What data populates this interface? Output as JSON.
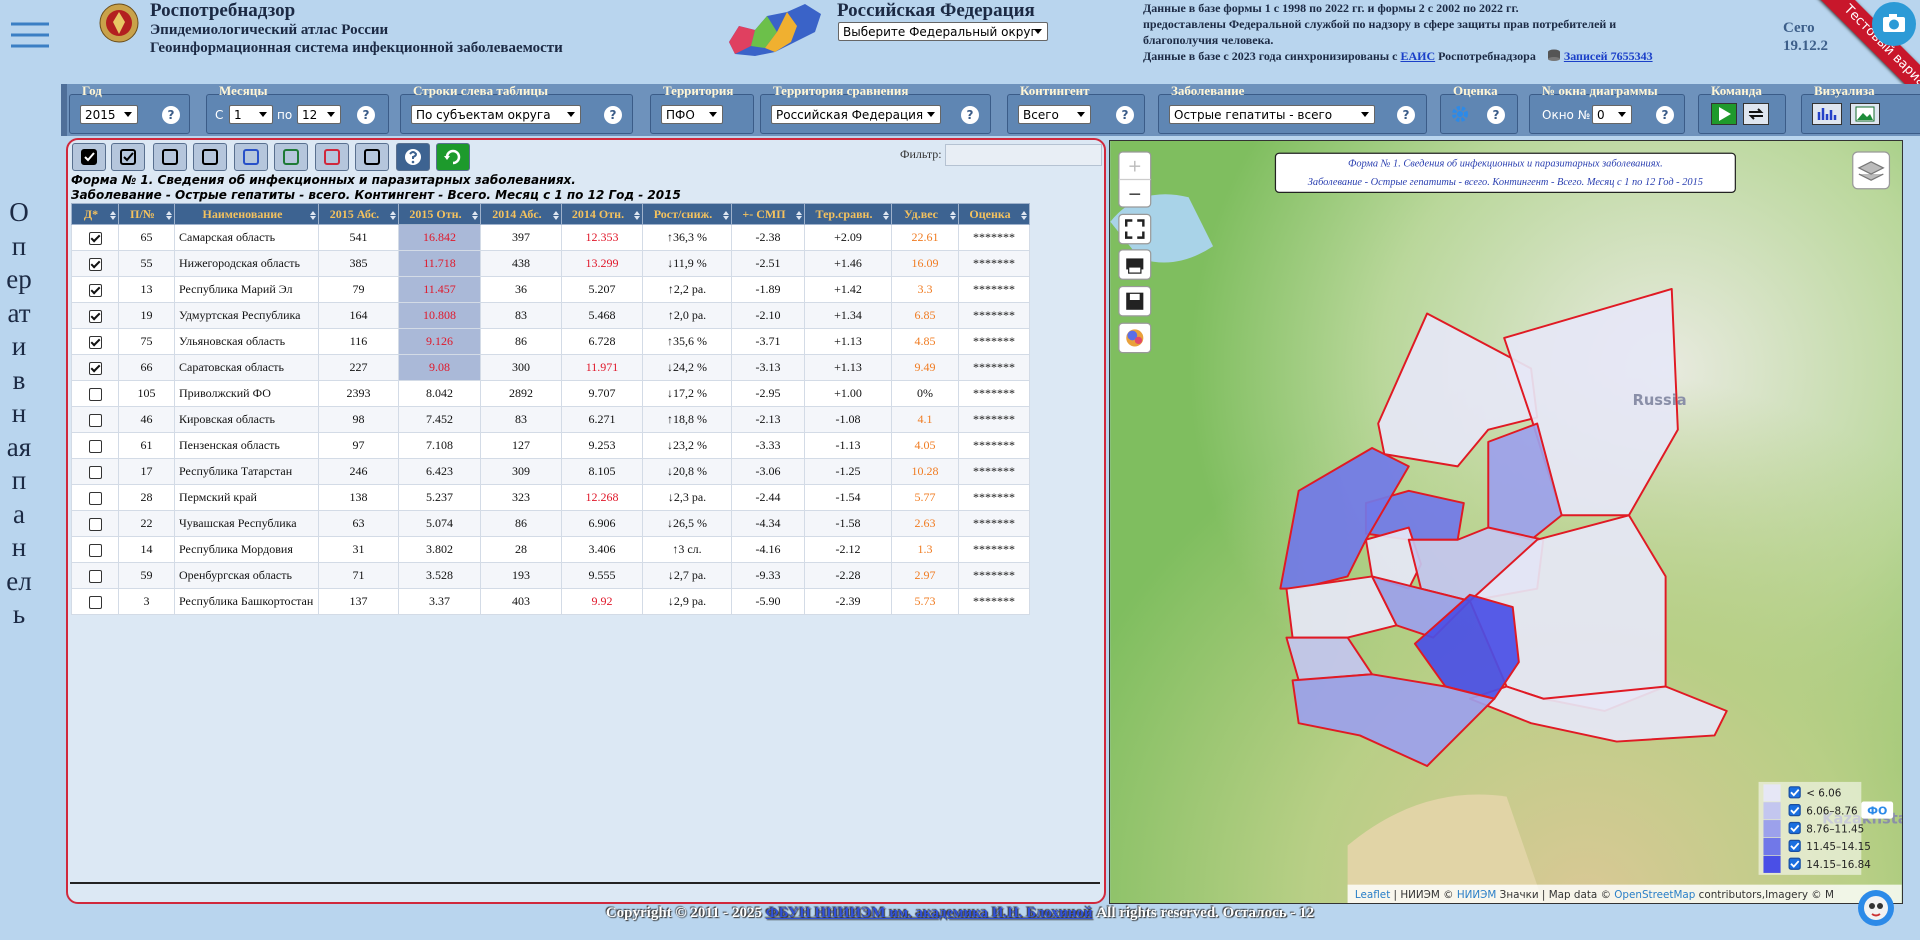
{
  "header": {
    "title": "Роспотребнадзор",
    "subtitle": "Эпидемиологический атлас России",
    "system": "Геоинформационная система инфекционной заболеваемости",
    "region_title": "Российская Федерация",
    "region_select": "Выберите Федеральный округ",
    "info": [
      "Данные в базе формы 1 с 1998 по 2022 гг. и формы 2 с 2002 по 2022 гг.",
      "предоставлены Федеральной службой по надзору в сфере защиты прав потребителей и",
      "благополучия человека.",
      "Данные в базе с 2023 года синхронизированы с"
    ],
    "eais_link": "ЕАИС",
    "eais_suffix": "Роспотребнадзора",
    "records_link": "Записей 7655343",
    "today_label": "Сего",
    "today_date": "19.12.2",
    "ribbon": "Тестовый вариант"
  },
  "toolbar": {
    "help": "?",
    "year": {
      "label": "Год",
      "value": "2015"
    },
    "months": {
      "label": "Месяцы",
      "from_label": "С",
      "from": "1",
      "to_label": "по",
      "to": "12"
    },
    "rows": {
      "label": "Строки слева таблицы",
      "value": "По субъектам округа"
    },
    "territory": {
      "label": "Территория",
      "value": "ПФО"
    },
    "compare": {
      "label": "Территория сравнения",
      "value": "Российская Федерация"
    },
    "contingent": {
      "label": "Контингент",
      "value": "Всего"
    },
    "disease": {
      "label": "Заболевание",
      "value": "Острые гепатиты - всего"
    },
    "rating": {
      "label": "Оценка"
    },
    "window": {
      "label": "№ окна диаграммы",
      "prefix": "Окно №",
      "value": "0"
    },
    "command": {
      "label": "Команда"
    },
    "visual": {
      "label": "Визуализа"
    }
  },
  "side_panel": "Оперативная панель",
  "table": {
    "filter_label": "Фильтр:",
    "caption": [
      "Форма № 1. Сведения об инфекционных и паразитарных заболеваниях.",
      "Заболевание - Острые гепатиты - всего. Контингент - Всего. Месяц с 1 по 12 Год - 2015"
    ],
    "columns": [
      "Д*",
      "П/№",
      "Наименование",
      "2015 Абс.",
      "2015 Отн.",
      "2014 Абс.",
      "2014 Отн.",
      "Рост/сниж.",
      "+- СМП",
      "Тер.сравн.",
      "Уд.вес",
      "Оценка"
    ],
    "rows": [
      {
        "checked": true,
        "cells": [
          "65",
          "Самарская область",
          "541",
          "16.842",
          "397",
          "12.353",
          "↑36,3 %",
          "-2.38",
          "+2.09",
          "22.61",
          "*******"
        ]
      },
      {
        "checked": true,
        "cells": [
          "55",
          "Нижегородская область",
          "385",
          "11.718",
          "438",
          "13.299",
          "↓11,9 %",
          "-2.51",
          "+1.46",
          "16.09",
          "*******"
        ]
      },
      {
        "checked": true,
        "cells": [
          "13",
          "Республика Марий Эл",
          "79",
          "11.457",
          "36",
          "5.207",
          "↑2,2 ра.",
          "-1.89",
          "+1.42",
          "3.3",
          "*******"
        ]
      },
      {
        "checked": true,
        "cells": [
          "19",
          "Удмуртская Республика",
          "164",
          "10.808",
          "83",
          "5.468",
          "↑2,0 ра.",
          "-2.10",
          "+1.34",
          "6.85",
          "*******"
        ]
      },
      {
        "checked": true,
        "cells": [
          "75",
          "Ульяновская область",
          "116",
          "9.126",
          "86",
          "6.728",
          "↑35,6 %",
          "-3.71",
          "+1.13",
          "4.85",
          "*******"
        ]
      },
      {
        "checked": true,
        "cells": [
          "66",
          "Саратовская область",
          "227",
          "9.08",
          "300",
          "11.971",
          "↓24,2 %",
          "-3.13",
          "+1.13",
          "9.49",
          "*******"
        ]
      },
      {
        "checked": false,
        "cells": [
          "105",
          "Приволжский ФО",
          "2393",
          "8.042",
          "2892",
          "9.707",
          "↓17,2 %",
          "-2.95",
          "+1.00",
          "0%",
          "*******"
        ]
      },
      {
        "checked": false,
        "cells": [
          "46",
          "Кировская область",
          "98",
          "7.452",
          "83",
          "6.271",
          "↑18,8 %",
          "-2.13",
          "-1.08",
          "4.1",
          "*******"
        ]
      },
      {
        "checked": false,
        "cells": [
          "61",
          "Пензенская область",
          "97",
          "7.108",
          "127",
          "9.253",
          "↓23,2 %",
          "-3.33",
          "-1.13",
          "4.05",
          "*******"
        ]
      },
      {
        "checked": false,
        "cells": [
          "17",
          "Республика Татарстан",
          "246",
          "6.423",
          "309",
          "8.105",
          "↓20,8 %",
          "-3.06",
          "-1.25",
          "10.28",
          "*******"
        ]
      },
      {
        "checked": false,
        "cells": [
          "28",
          "Пермский край",
          "138",
          "5.237",
          "323",
          "12.268",
          "↓2,3 ра.",
          "-2.44",
          "-1.54",
          "5.77",
          "*******"
        ]
      },
      {
        "checked": false,
        "cells": [
          "22",
          "Чувашская Республика",
          "63",
          "5.074",
          "86",
          "6.906",
          "↓26,5 %",
          "-4.34",
          "-1.58",
          "2.63",
          "*******"
        ]
      },
      {
        "checked": false,
        "cells": [
          "14",
          "Республика Мордовия",
          "31",
          "3.802",
          "28",
          "3.406",
          "↑3 сл.",
          "-4.16",
          "-2.12",
          "1.3",
          "*******"
        ]
      },
      {
        "checked": false,
        "cells": [
          "59",
          "Оренбургская область",
          "71",
          "3.528",
          "193",
          "9.555",
          "↓2,7 ра.",
          "-9.33",
          "-2.28",
          "2.97",
          "*******"
        ]
      },
      {
        "checked": false,
        "cells": [
          "3",
          "Республика Башкортостан",
          "137",
          "3.37",
          "403",
          "9.92",
          "↓2,9 ра.",
          "-5.90",
          "-2.39",
          "5.73",
          "*******"
        ]
      }
    ]
  },
  "map": {
    "zoom_in": "+",
    "zoom_out": "−",
    "title": [
      "Форма № 1. Сведения об инфекционных и паразитарных заболеваниях.",
      "Заболевание - Острые гепатиты - всего. Контингент - Всего. Месяц с 1 по 12 Год - 2015"
    ],
    "country_label": "Russia",
    "neighbor_label": "Kazakhsta",
    "fo_label": "ФО",
    "legend": [
      {
        "label": "< 6.06",
        "color": "#e6e7f6",
        "checked": true
      },
      {
        "label": "6.06–8.76",
        "color": "#c3c6ef",
        "checked": true
      },
      {
        "label": "8.76–11.45",
        "color": "#9ca1eb",
        "checked": true
      },
      {
        "label": "11.45–14.15",
        "color": "#7178e8",
        "checked": true
      },
      {
        "label": "14.15–16.84",
        "color": "#4a4fe6",
        "checked": true
      }
    ],
    "attribution": [
      "Leaflet",
      " | НИИЭМ © ",
      "НИИЭМ",
      " Значки | Map data © ",
      "OpenStreetMap",
      " contributors,Imagery © M"
    ]
  },
  "footer": {
    "copyright": "Copyright © 2011 - 2025",
    "org": "ФБУН ННИИЭМ им. академика И.Н. Блохиной",
    "rights": "All rights reserved. Осталось - 12"
  }
}
